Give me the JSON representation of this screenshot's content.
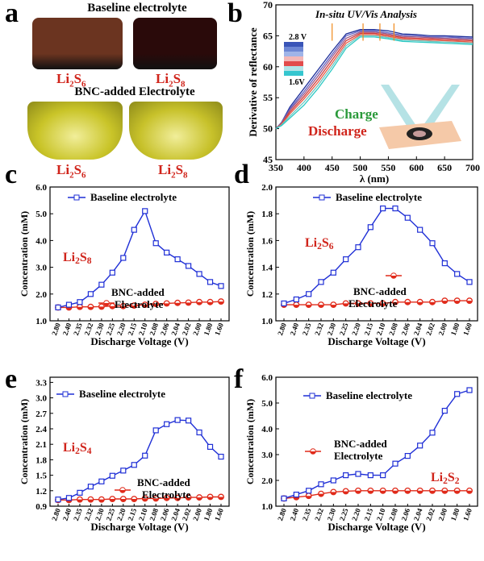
{
  "panel_a": {
    "letter": "a",
    "title_top": "Baseline electrolyte",
    "title_bottom": "BNC-added Electrolyte",
    "labels": [
      "Li2S6",
      "Li2S8",
      "Li2S6",
      "Li2S8"
    ],
    "vial_colors": [
      "#6b3420",
      "#2a0a0a",
      "#c9c428",
      "#c7c12a"
    ]
  },
  "panel_b": {
    "letter": "b",
    "chart_data": {
      "type": "line",
      "title": "In-situ UV/Vis Analysis",
      "xlabel": "λ (nm)",
      "ylabel": "Derivative of reflectance",
      "xlim": [
        350,
        700
      ],
      "ylim": [
        45,
        70
      ],
      "xticks": [
        350,
        400,
        450,
        500,
        550,
        600,
        650,
        700
      ],
      "yticks": [
        45,
        50,
        55,
        60,
        65,
        70
      ],
      "legend_top": "2.8 V",
      "legend_bottom": "1.6V",
      "annotation_charge": "Charge",
      "annotation_discharge": "Discharge",
      "x": [
        350,
        360,
        375,
        400,
        425,
        450,
        475,
        500,
        525,
        550,
        575,
        600,
        625,
        650,
        675,
        700
      ],
      "series": [
        {
          "color": "#1e2f9a",
          "values": [
            50,
            51,
            53.5,
            56.5,
            59.5,
            62.5,
            65.3,
            66.0,
            66.0,
            65.8,
            65.3,
            65.2,
            65.0,
            65.0,
            64.9,
            64.8
          ]
        },
        {
          "color": "#5f61c4",
          "values": [
            50,
            51,
            53.2,
            56.0,
            59.0,
            62.0,
            65.0,
            65.8,
            65.8,
            65.5,
            65.1,
            65.0,
            64.8,
            64.8,
            64.7,
            64.6
          ]
        },
        {
          "color": "#9b5c8a",
          "values": [
            50,
            50.9,
            53.0,
            55.6,
            58.5,
            61.6,
            64.6,
            65.6,
            65.6,
            65.3,
            64.9,
            64.8,
            64.7,
            64.6,
            64.5,
            64.4
          ]
        },
        {
          "color": "#d13c3c",
          "values": [
            50,
            50.8,
            52.7,
            55.2,
            58.0,
            61.1,
            64.2,
            65.4,
            65.4,
            65.1,
            64.7,
            64.6,
            64.5,
            64.4,
            64.3,
            64.2
          ]
        },
        {
          "color": "#e85b47",
          "values": [
            50,
            50.7,
            52.4,
            54.8,
            57.5,
            60.6,
            63.8,
            65.2,
            65.2,
            64.9,
            64.5,
            64.4,
            64.3,
            64.2,
            64.1,
            64.0
          ]
        },
        {
          "color": "#6fc7c2",
          "values": [
            50,
            50.6,
            52.0,
            54.3,
            57.0,
            60.1,
            63.4,
            65.0,
            65.0,
            64.7,
            64.3,
            64.2,
            64.1,
            64.0,
            63.9,
            63.8
          ]
        },
        {
          "color": "#2ec9c4",
          "values": [
            50,
            50.5,
            51.7,
            53.8,
            56.5,
            59.6,
            63.0,
            64.8,
            64.8,
            64.5,
            64.1,
            64.0,
            63.9,
            63.8,
            63.7,
            63.6
          ]
        }
      ],
      "markers_x": [
        450,
        505,
        535,
        560
      ]
    }
  },
  "panel_c": {
    "letter": "c",
    "chart_data": {
      "type": "line",
      "species": "Li2S8",
      "xlabel": "Discharge Voltage (V)",
      "ylabel": "Concentration (mM)",
      "ylim": [
        1.0,
        6.0
      ],
      "yticks": [
        "1.0",
        "2.0",
        "3.0",
        "4.0",
        "5.0",
        "6.0"
      ],
      "categories": [
        "2.80",
        "2.40",
        "2.35",
        "2.32",
        "2.30",
        "2.25",
        "2.20",
        "2.15",
        "2.10",
        "2.08",
        "2.06",
        "2.04",
        "2.02",
        "2.00",
        "1.80",
        "1.60"
      ],
      "series": [
        {
          "name": "Baseline electrolyte",
          "color": "#1f2fd6",
          "values": [
            1.5,
            1.6,
            1.7,
            2.0,
            2.35,
            2.8,
            3.35,
            4.4,
            5.1,
            3.9,
            3.55,
            3.3,
            3.05,
            2.75,
            2.45,
            2.3
          ]
        },
        {
          "name": "BNC-added Electrolyte",
          "color": "#e02a1a",
          "values": [
            1.5,
            1.5,
            1.52,
            1.52,
            1.53,
            1.55,
            1.55,
            1.57,
            1.6,
            1.63,
            1.65,
            1.67,
            1.68,
            1.7,
            1.7,
            1.72
          ]
        }
      ]
    }
  },
  "panel_d": {
    "letter": "d",
    "chart_data": {
      "type": "line",
      "species": "Li2S6",
      "xlabel": "Discharge Voltage (V)",
      "ylabel": "Concentration (mM)",
      "ylim": [
        1.0,
        2.0
      ],
      "yticks": [
        "1.0",
        "1.2",
        "1.4",
        "1.6",
        "1.8",
        "2.0"
      ],
      "categories": [
        "2.80",
        "2.40",
        "2.35",
        "2.32",
        "2.30",
        "2.25",
        "2.20",
        "2.15",
        "2.10",
        "2.08",
        "2.06",
        "2.04",
        "2.02",
        "2.00",
        "1.80",
        "1.60"
      ],
      "series": [
        {
          "name": "Baseline electrolyte",
          "color": "#1f2fd6",
          "values": [
            1.13,
            1.16,
            1.2,
            1.29,
            1.36,
            1.46,
            1.55,
            1.7,
            1.84,
            1.84,
            1.77,
            1.68,
            1.58,
            1.43,
            1.35,
            1.29
          ]
        },
        {
          "name": "BNC-added Electrolyte",
          "color": "#e02a1a",
          "values": [
            1.12,
            1.12,
            1.12,
            1.12,
            1.12,
            1.13,
            1.13,
            1.13,
            1.13,
            1.14,
            1.14,
            1.14,
            1.14,
            1.15,
            1.15,
            1.15
          ]
        }
      ]
    }
  },
  "panel_e": {
    "letter": "e",
    "chart_data": {
      "type": "line",
      "species": "Li2S4",
      "xlabel": "Discharge Voltage (V)",
      "ylabel": "Concentration (mM)",
      "ylim": [
        0.9,
        3.4
      ],
      "yticks": [
        "0.9",
        "1.2",
        "1.5",
        "1.8",
        "2.1",
        "2.4",
        "2.7",
        "3.0",
        "3.3"
      ],
      "categories": [
        "2.80",
        "2.40",
        "2.35",
        "2.32",
        "2.30",
        "2.25",
        "2.20",
        "2.15",
        "2.10",
        "2.08",
        "2.06",
        "2.04",
        "2.02",
        "2.00",
        "1.80",
        "1.60"
      ],
      "series": [
        {
          "name": "Baseline electrolyte",
          "color": "#1f2fd6",
          "values": [
            1.03,
            1.06,
            1.16,
            1.28,
            1.38,
            1.49,
            1.59,
            1.7,
            1.88,
            2.37,
            2.49,
            2.57,
            2.56,
            2.33,
            2.05,
            1.86
          ]
        },
        {
          "name": "BNC-added Electrolyte",
          "color": "#e02a1a",
          "values": [
            1.02,
            1.02,
            1.03,
            1.03,
            1.03,
            1.04,
            1.04,
            1.04,
            1.05,
            1.05,
            1.06,
            1.06,
            1.07,
            1.07,
            1.08,
            1.08
          ]
        }
      ]
    }
  },
  "panel_f": {
    "letter": "f",
    "chart_data": {
      "type": "line",
      "species": "Li2S2",
      "xlabel": "Discharge Voltage (V)",
      "ylabel": "Concentration (mM)",
      "ylim": [
        1.0,
        6.0
      ],
      "yticks": [
        "1.0",
        "2.0",
        "3.0",
        "4.0",
        "5.0",
        "6.0"
      ],
      "categories": [
        "2.80",
        "2.40",
        "2.35",
        "2.32",
        "2.30",
        "2.25",
        "2.20",
        "2.15",
        "2.10",
        "2.08",
        "2.06",
        "2.04",
        "2.02",
        "2.00",
        "1.80",
        "1.60"
      ],
      "series": [
        {
          "name": "Baseline electrolyte",
          "color": "#1f2fd6",
          "values": [
            1.3,
            1.45,
            1.6,
            1.85,
            2.0,
            2.2,
            2.25,
            2.2,
            2.2,
            2.65,
            2.95,
            3.35,
            3.85,
            4.7,
            5.35,
            5.5
          ]
        },
        {
          "name": "BNC-added Electrolyte",
          "color": "#e02a1a",
          "values": [
            1.3,
            1.35,
            1.4,
            1.48,
            1.55,
            1.58,
            1.6,
            1.6,
            1.6,
            1.6,
            1.6,
            1.6,
            1.6,
            1.6,
            1.6,
            1.6
          ]
        }
      ]
    }
  },
  "legend": {
    "baseline": "Baseline electrolyte",
    "bnc_line1": "BNC-added",
    "bnc_line2": "Electrolyte"
  }
}
